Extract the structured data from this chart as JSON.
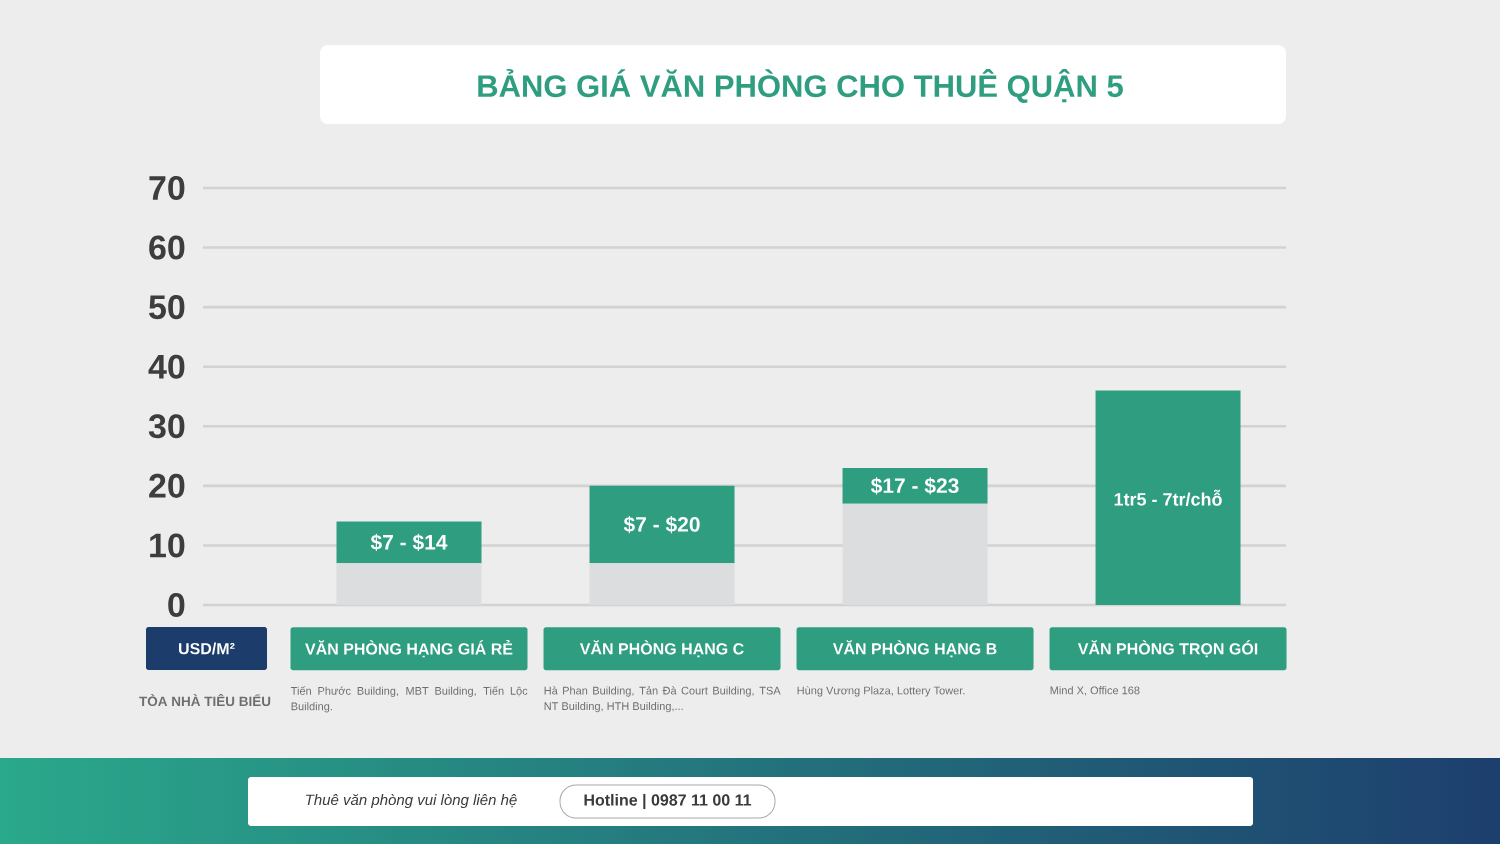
{
  "chart_data": {
    "type": "bar",
    "title": "BẢNG GIÁ VĂN PHÒNG CHO THUÊ QUẬN 5",
    "categories": [
      "VĂN PHÒNG HẠNG GIÁ RẺ",
      "VĂN PHÒNG HẠNG C",
      "VĂN PHÒNG HẠNG B",
      "VĂN PHÒNG TRỌN GÓI"
    ],
    "ylabel": "USD/M²",
    "stacked": true,
    "series": [
      {
        "color": "#dcdddf",
        "values": [
          7,
          7,
          17,
          null
        ]
      },
      {
        "color": "#2f9e80",
        "values": [
          7,
          13,
          6,
          36
        ]
      }
    ],
    "ylim": [
      0,
      70
    ],
    "yticks": [
      0,
      10,
      20,
      30,
      40,
      50,
      60,
      70
    ],
    "grid": "y",
    "annotations": [
      "$7 - $14",
      "$7 - $20",
      "$17 - $23",
      "1tr5 - 7tr/chỗ",
      "TÒA NHÀ TIÊU BIỂU",
      "Tiến Phước Building, MBT Building, Tiến Lộc Building.",
      "Hà Phan Building, Tản Đà Court Building, TSA NT Building, HTH Building,...",
      "Hùng Vương Plaza, Lottery Tower.",
      "Mind X, Office 168",
      "Thuê văn phòng vui lòng liên hệ",
      "Hotline | 0987 11 00 11"
    ]
  }
}
